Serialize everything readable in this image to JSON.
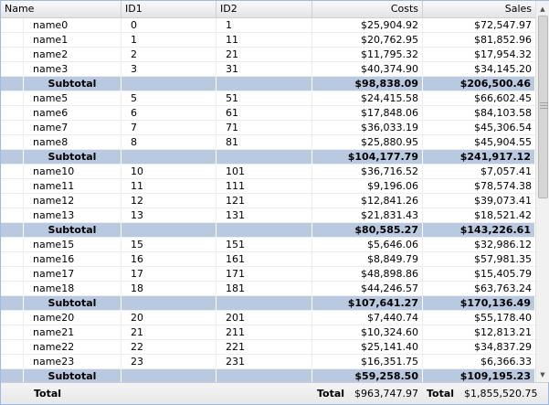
{
  "columns": {
    "name": "Name",
    "id1": "ID1",
    "id2": "ID2",
    "costs": "Costs",
    "sales": "Sales"
  },
  "rows": [
    {
      "type": "data",
      "name": "name0",
      "id1": "0",
      "id2": "1",
      "costs": "$25,904.92",
      "sales": "$72,547.97"
    },
    {
      "type": "data",
      "name": "name1",
      "id1": "1",
      "id2": "11",
      "costs": "$20,762.95",
      "sales": "$81,852.96"
    },
    {
      "type": "data",
      "name": "name2",
      "id1": "2",
      "id2": "21",
      "costs": "$11,795.32",
      "sales": "$17,954.32"
    },
    {
      "type": "data",
      "name": "name3",
      "id1": "3",
      "id2": "31",
      "costs": "$40,374.90",
      "sales": "$34,145.20"
    },
    {
      "type": "subtotal",
      "name": "Subtotal",
      "id1": "",
      "id2": "",
      "costs": "$98,838.09",
      "sales": "$206,500.46"
    },
    {
      "type": "data",
      "name": "name5",
      "id1": "5",
      "id2": "51",
      "costs": "$24,415.58",
      "sales": "$66,602.45"
    },
    {
      "type": "data",
      "name": "name6",
      "id1": "6",
      "id2": "61",
      "costs": "$17,848.06",
      "sales": "$84,103.58"
    },
    {
      "type": "data",
      "name": "name7",
      "id1": "7",
      "id2": "71",
      "costs": "$36,033.19",
      "sales": "$45,306.54"
    },
    {
      "type": "data",
      "name": "name8",
      "id1": "8",
      "id2": "81",
      "costs": "$25,880.95",
      "sales": "$45,904.55"
    },
    {
      "type": "subtotal",
      "name": "Subtotal",
      "id1": "",
      "id2": "",
      "costs": "$104,177.79",
      "sales": "$241,917.12"
    },
    {
      "type": "data",
      "name": "name10",
      "id1": "10",
      "id2": "101",
      "costs": "$36,716.52",
      "sales": "$7,057.41"
    },
    {
      "type": "data",
      "name": "name11",
      "id1": "11",
      "id2": "111",
      "costs": "$9,196.06",
      "sales": "$78,574.38"
    },
    {
      "type": "data",
      "name": "name12",
      "id1": "12",
      "id2": "121",
      "costs": "$12,841.26",
      "sales": "$39,073.41"
    },
    {
      "type": "data",
      "name": "name13",
      "id1": "13",
      "id2": "131",
      "costs": "$21,831.43",
      "sales": "$18,521.42"
    },
    {
      "type": "subtotal",
      "name": "Subtotal",
      "id1": "",
      "id2": "",
      "costs": "$80,585.27",
      "sales": "$143,226.61"
    },
    {
      "type": "data",
      "name": "name15",
      "id1": "15",
      "id2": "151",
      "costs": "$5,646.06",
      "sales": "$32,986.12"
    },
    {
      "type": "data",
      "name": "name16",
      "id1": "16",
      "id2": "161",
      "costs": "$8,849.79",
      "sales": "$57,981.35"
    },
    {
      "type": "data",
      "name": "name17",
      "id1": "17",
      "id2": "171",
      "costs": "$48,898.86",
      "sales": "$15,405.79"
    },
    {
      "type": "data",
      "name": "name18",
      "id1": "18",
      "id2": "181",
      "costs": "$44,246.57",
      "sales": "$63,763.24"
    },
    {
      "type": "subtotal",
      "name": "Subtotal",
      "id1": "",
      "id2": "",
      "costs": "$107,641.27",
      "sales": "$170,136.49"
    },
    {
      "type": "data",
      "name": "name20",
      "id1": "20",
      "id2": "201",
      "costs": "$7,440.74",
      "sales": "$55,178.40"
    },
    {
      "type": "data",
      "name": "name21",
      "id1": "21",
      "id2": "211",
      "costs": "$10,324.60",
      "sales": "$12,813.21"
    },
    {
      "type": "data",
      "name": "name22",
      "id1": "22",
      "id2": "221",
      "costs": "$25,141.40",
      "sales": "$34,837.29"
    },
    {
      "type": "data",
      "name": "name23",
      "id1": "23",
      "id2": "231",
      "costs": "$16,351.75",
      "sales": "$6,366.33"
    },
    {
      "type": "subtotal",
      "name": "Subtotal",
      "id1": "",
      "id2": "",
      "costs": "$59,258.50",
      "sales": "$109,195.23"
    }
  ],
  "footer": {
    "label": "Total",
    "costs_label": "Total",
    "costs_value": "$963,747.97",
    "sales_label": "Total",
    "sales_value": "$1,855,520.75"
  },
  "scrollbar": {
    "up_icon": "arrow-up-icon",
    "down_icon": "arrow-down-icon"
  }
}
